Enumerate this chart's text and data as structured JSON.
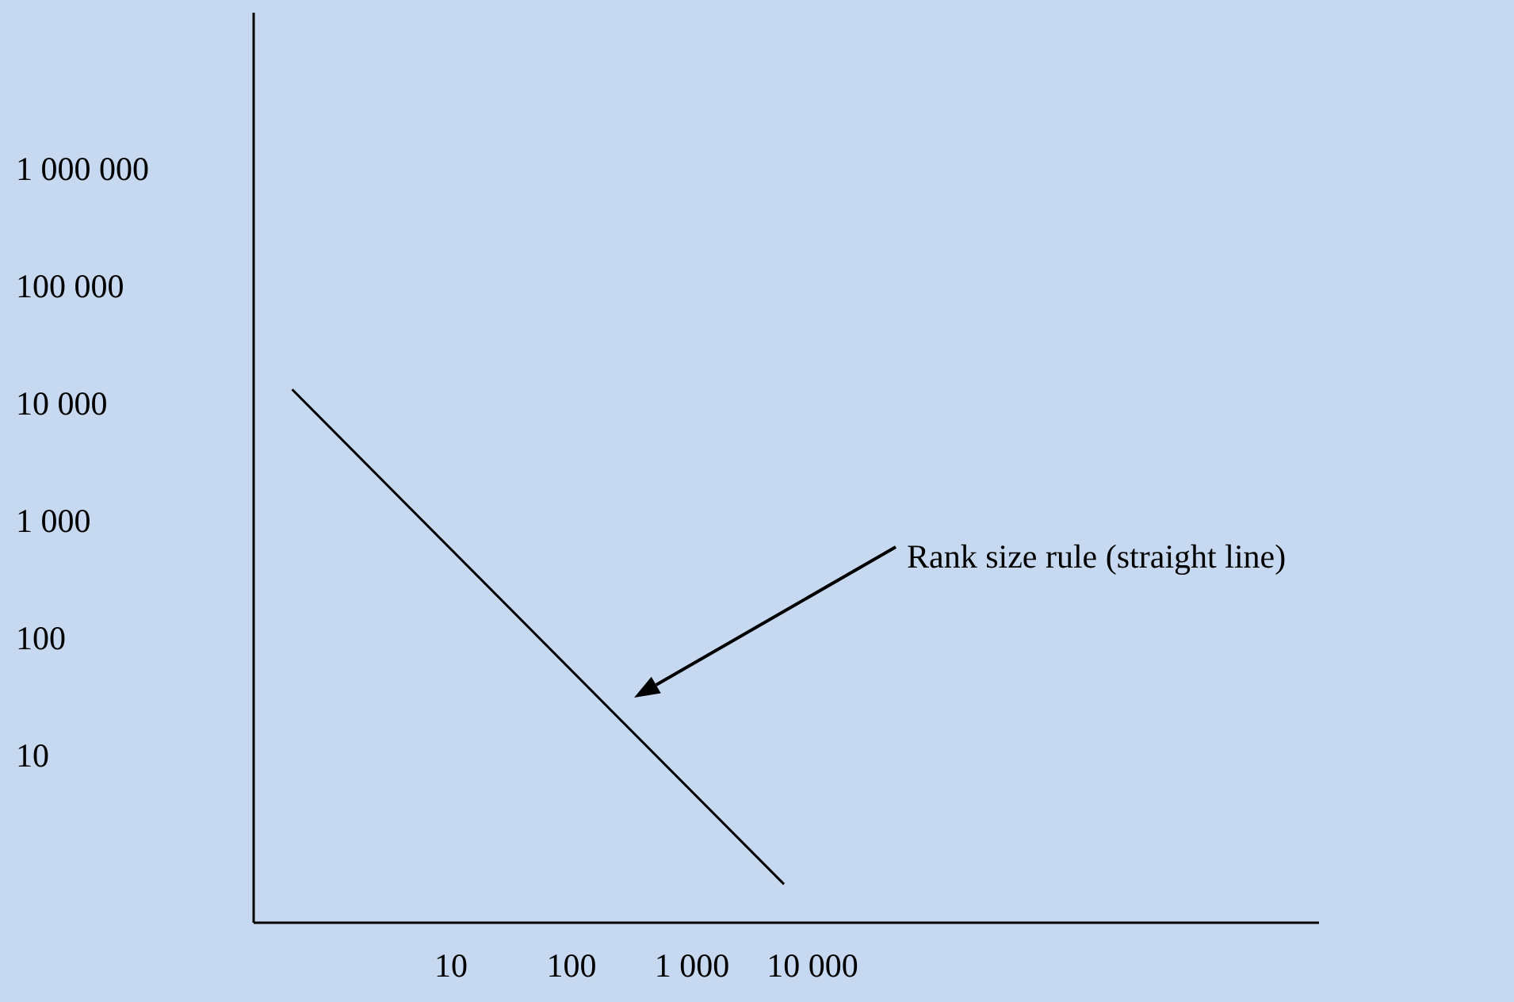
{
  "chart_data": {
    "type": "line",
    "log": "xy",
    "grid": false,
    "legend": false,
    "marker": "none",
    "line_style": "solid",
    "xlim": [
      0.23,
      160000000
    ],
    "ylim": [
      0.39,
      22000000
    ],
    "xticks": [
      10,
      100,
      {
        "value": 1000,
        "label": "1 000"
      },
      {
        "value": 10000,
        "label": "10 000"
      }
    ],
    "yticks": [
      10,
      100,
      {
        "value": 1000,
        "label": "1 000"
      },
      {
        "value": 10000,
        "label": "10 000"
      },
      {
        "value": 100000,
        "label": "100 000"
      },
      {
        "value": 1000000,
        "label": "1 000 000"
      }
    ],
    "series": [
      {
        "color": "#000000",
        "x": [
          0.48,
          5800
        ],
        "values": [
          13600,
          0.83
        ]
      }
    ],
    "annotations": [
      "Rank size rule (straight line)"
    ]
  }
}
